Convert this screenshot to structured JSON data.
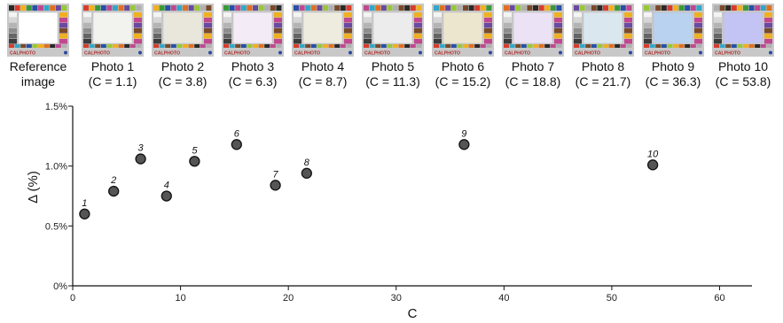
{
  "thumbnails": [
    {
      "line1": "Reference",
      "line2": "image",
      "tint": "#ffffff"
    },
    {
      "line1": "Photo 1",
      "line2": "(C = 1.1)",
      "tint": "#f2f2ee"
    },
    {
      "line1": "Photo 2",
      "line2": "(C = 3.8)",
      "tint": "#e9e7dc"
    },
    {
      "line1": "Photo 3",
      "line2": "(C = 6.3)",
      "tint": "#f3ecf6"
    },
    {
      "line1": "Photo 4",
      "line2": "(C = 8.7)",
      "tint": "#eeebdf"
    },
    {
      "line1": "Photo 5",
      "line2": "(C = 11.3)",
      "tint": "#ececec"
    },
    {
      "line1": "Photo 6",
      "line2": "(C = 15.2)",
      "tint": "#ede6cf"
    },
    {
      "line1": "Photo 7",
      "line2": "(C = 18.8)",
      "tint": "#ebe2f5"
    },
    {
      "line1": "Photo 8",
      "line2": "(C = 21.7)",
      "tint": "#dbe7ee"
    },
    {
      "line1": "Photo 9",
      "line2": "(C = 36.3)",
      "tint": "#b9d2ef"
    },
    {
      "line1": "Photo 10",
      "line2": "(C = 53.8)",
      "tint": "#c3c4f3"
    }
  ],
  "thumb_logo": "CALPHOTO",
  "chart_data": {
    "type": "scatter",
    "xlabel": "C",
    "ylabel": "Δ (%)",
    "xlim": [
      0,
      63
    ],
    "ylim": [
      0,
      1.5
    ],
    "xticks": [
      0,
      10,
      20,
      30,
      40,
      50,
      60
    ],
    "xtick_labels": [
      "0",
      "10",
      "20",
      "30",
      "40",
      "50",
      "60"
    ],
    "yticks": [
      0,
      0.5,
      1.0,
      1.5
    ],
    "ytick_labels": [
      "0%",
      "0.5%",
      "1.0%",
      "1.5%"
    ],
    "grid": false,
    "points": [
      {
        "label": "1",
        "x": 1.1,
        "y": 0.6
      },
      {
        "label": "2",
        "x": 3.8,
        "y": 0.79
      },
      {
        "label": "3",
        "x": 6.3,
        "y": 1.06
      },
      {
        "label": "4",
        "x": 8.7,
        "y": 0.75
      },
      {
        "label": "5",
        "x": 11.3,
        "y": 1.04
      },
      {
        "label": "6",
        "x": 15.2,
        "y": 1.18
      },
      {
        "label": "7",
        "x": 18.8,
        "y": 0.84
      },
      {
        "label": "8",
        "x": 21.7,
        "y": 0.94
      },
      {
        "label": "9",
        "x": 36.3,
        "y": 1.18
      },
      {
        "label": "10",
        "x": 53.8,
        "y": 1.01
      }
    ],
    "marker_fill": "#555555",
    "marker_stroke": "#111111"
  }
}
